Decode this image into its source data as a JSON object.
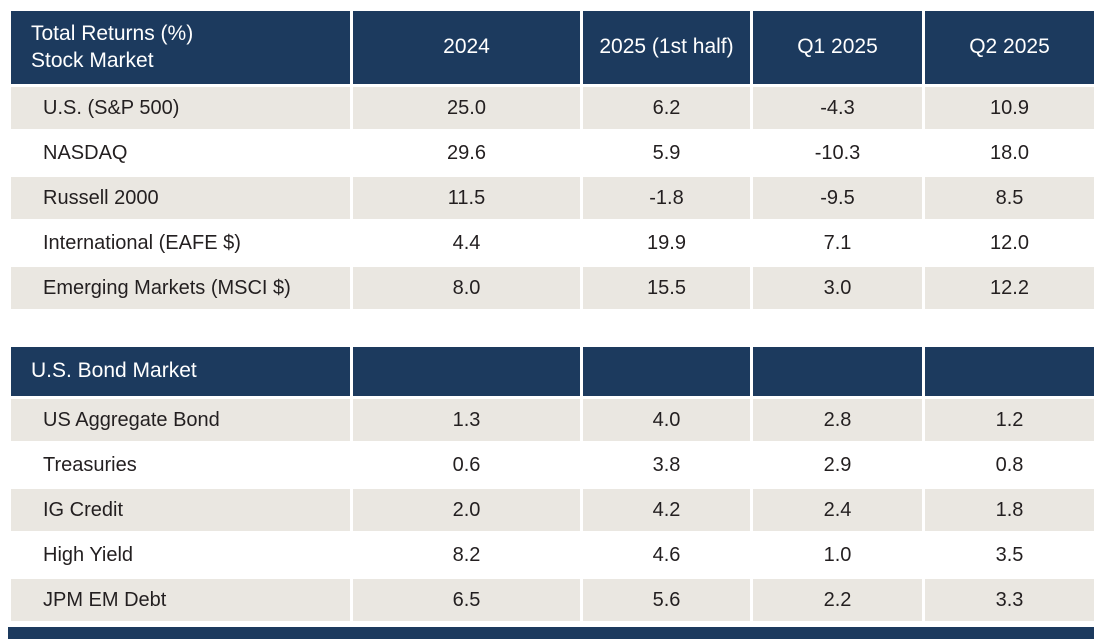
{
  "colors": {
    "header_bg": "#1c3a5e",
    "row_alt_bg": "#eae7e1",
    "row_bg": "#ffffff",
    "header_text": "#ffffff",
    "body_text": "#231f20"
  },
  "chart_data": {
    "type": "table",
    "title": "Total Returns (%)",
    "columns": [
      "2024",
      "2025 (1st half)",
      "Q1 2025",
      "Q2 2025"
    ],
    "sections": [
      {
        "header_line1": "Total Returns (%)",
        "header_line2": "Stock Market",
        "rows": [
          [
            "U.S. (S&P 500)",
            "25.0",
            "6.2",
            "-4.3",
            "10.9"
          ],
          [
            "NASDAQ",
            "29.6",
            "5.9",
            "-10.3",
            "18.0"
          ],
          [
            "Russell 2000",
            "11.5",
            "-1.8",
            "-9.5",
            "8.5"
          ],
          [
            "International (EAFE $)",
            "4.4",
            "19.9",
            "7.1",
            "12.0"
          ],
          [
            "Emerging Markets (MSCI $)",
            "8.0",
            "15.5",
            "3.0",
            "12.2"
          ]
        ]
      },
      {
        "header_line1": "U.S. Bond Market",
        "rows": [
          [
            "US Aggregate Bond",
            "1.3",
            "4.0",
            "2.8",
            "1.2"
          ],
          [
            "Treasuries",
            "0.6",
            "3.8",
            "2.9",
            "0.8"
          ],
          [
            "IG Credit",
            "2.0",
            "4.2",
            "2.4",
            "1.8"
          ],
          [
            "High Yield",
            "8.2",
            "4.6",
            "1.0",
            "3.5"
          ],
          [
            "JPM EM Debt",
            "6.5",
            "5.6",
            "2.2",
            "3.3"
          ]
        ]
      }
    ]
  }
}
